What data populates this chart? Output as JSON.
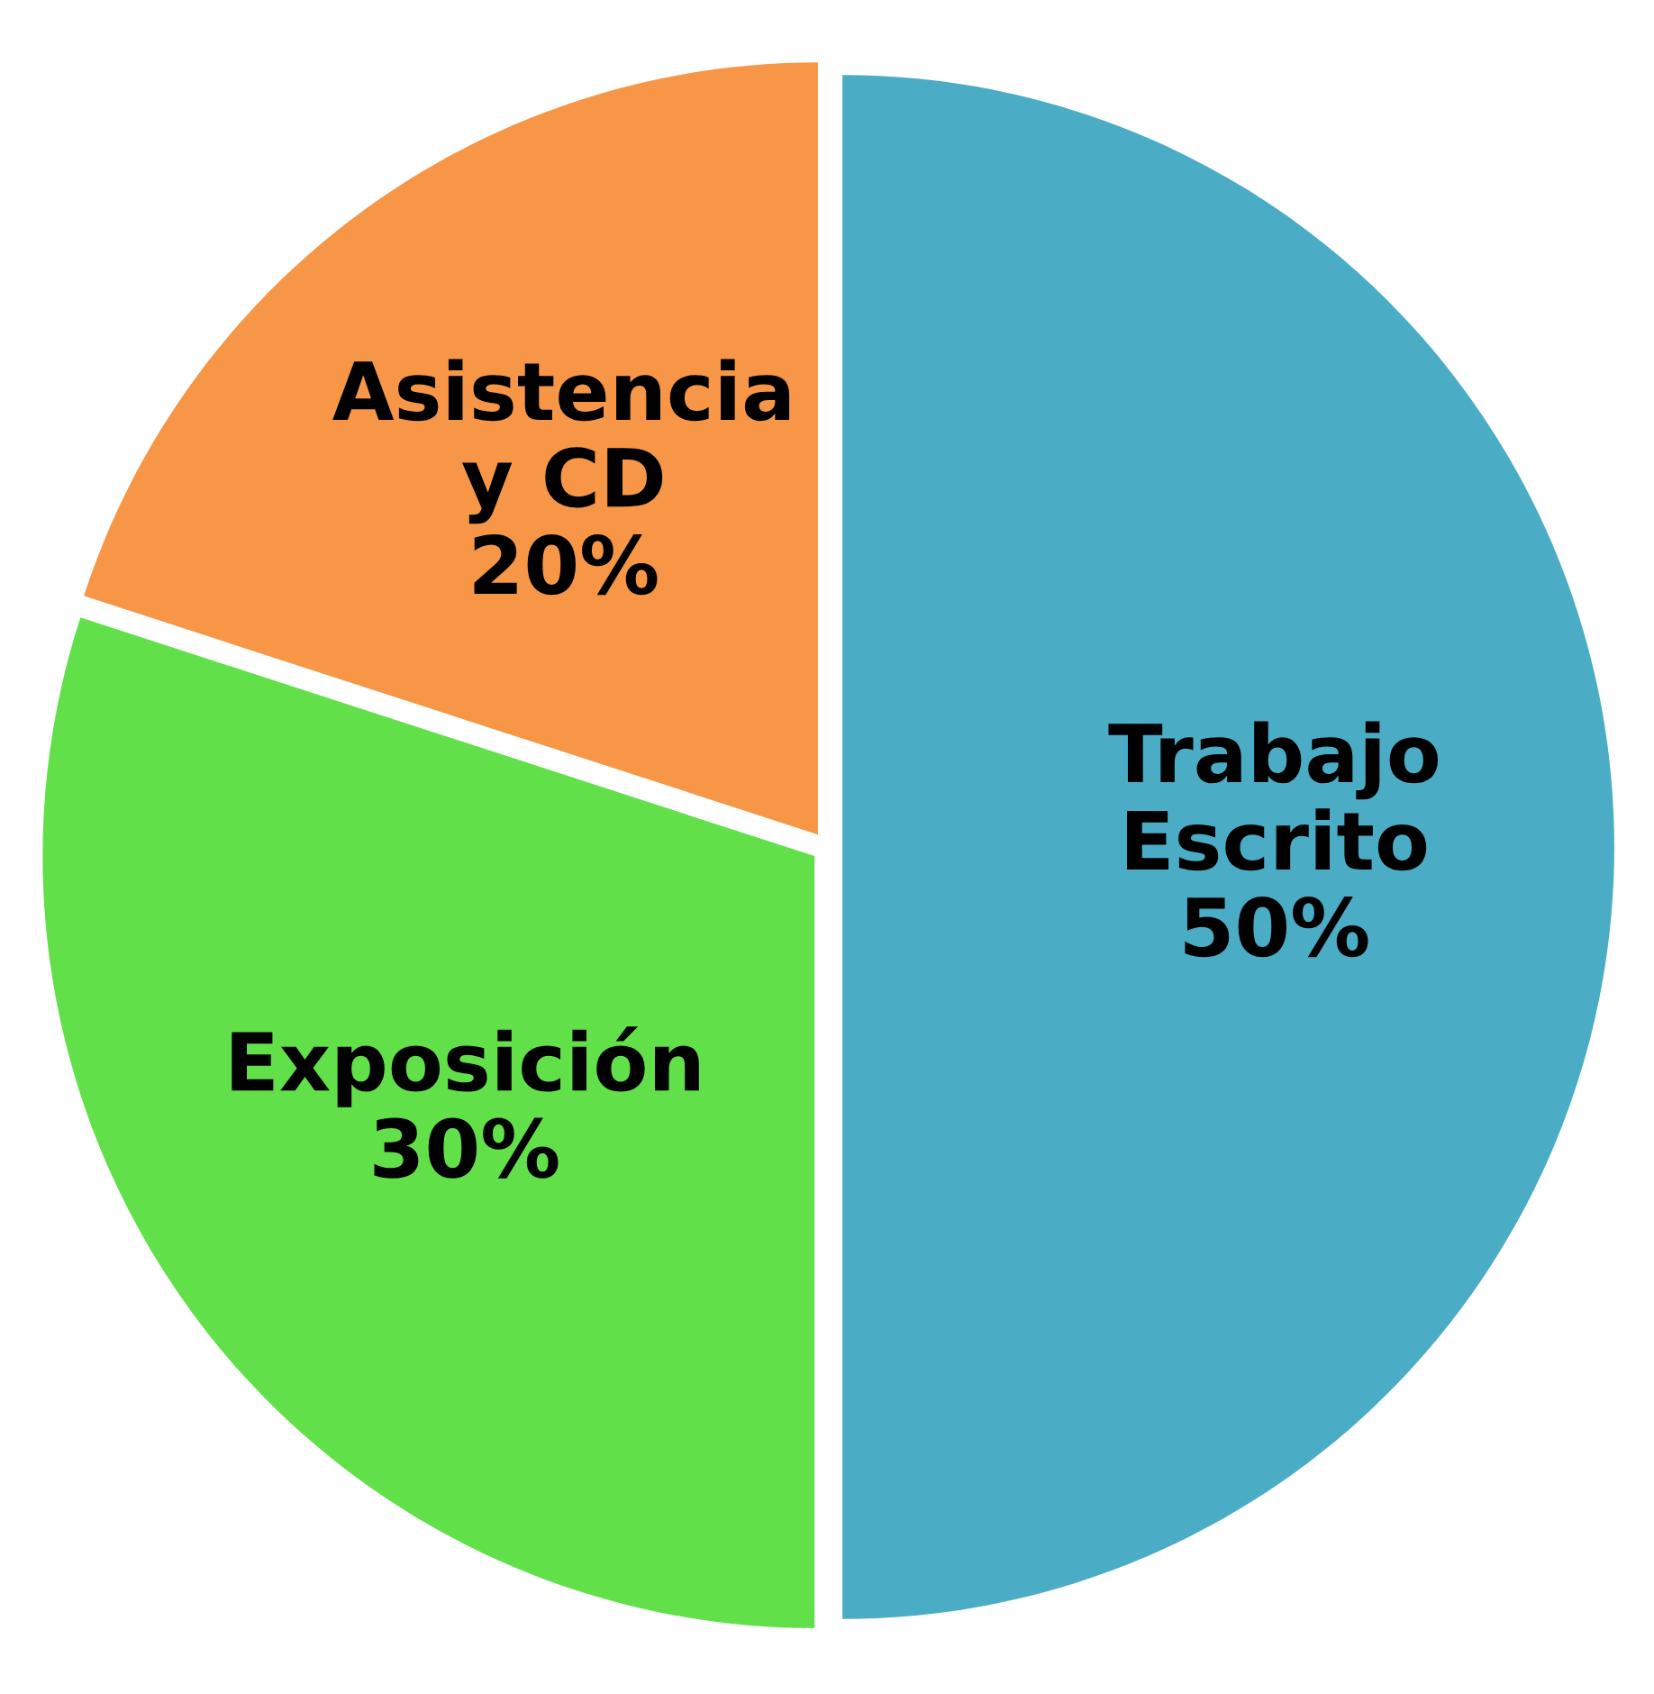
{
  "chart_data": {
    "type": "pie",
    "categories": [
      "Trabajo\nEscrito",
      "Exposición",
      "Asistencia\ny CD"
    ],
    "values": [
      50,
      30,
      20
    ],
    "colors": [
      "#4bacc6",
      "#62e04a",
      "#f79646"
    ],
    "value_labels": [
      "50%",
      "30%",
      "20%"
    ]
  }
}
